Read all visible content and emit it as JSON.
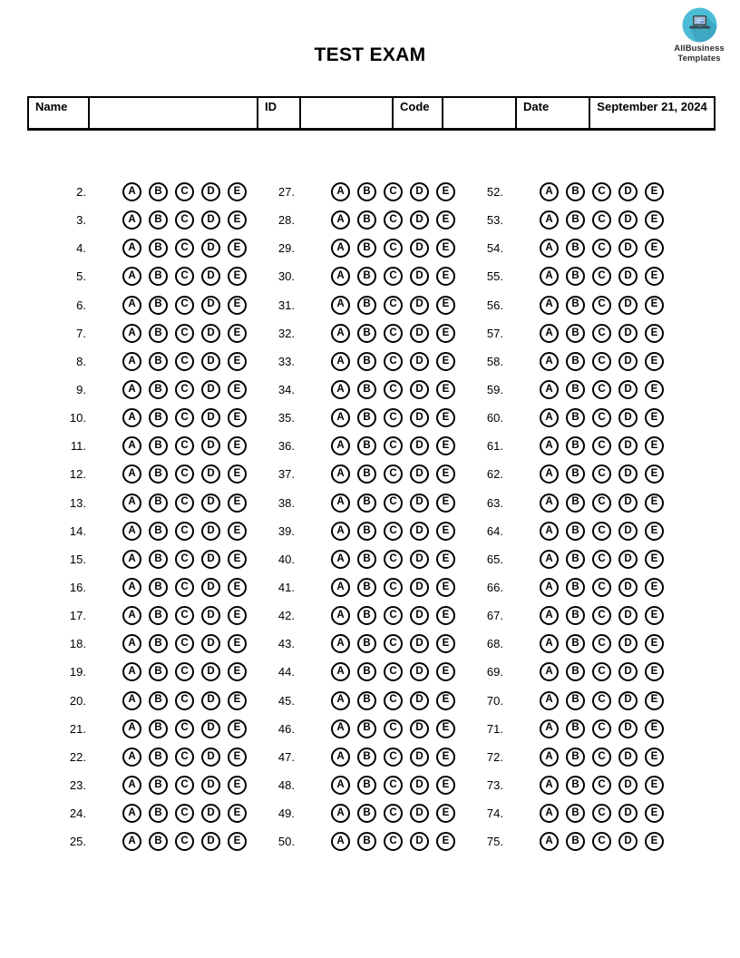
{
  "logo": {
    "line1": "AllBusiness",
    "line2": "Templates",
    "circle_color": "#4cbcd6",
    "shadow_color": "#3ea7c2",
    "laptop_body_color": "#37474f",
    "screen_bg_color": "#eceff1",
    "screen_content_color": "#5c8fd6"
  },
  "title": "TEST EXAM",
  "header_table": {
    "name_label": "Name",
    "name_value": "",
    "id_label": "ID",
    "id_value": "",
    "code_label": "Code",
    "code_value": "",
    "date_label": "Date",
    "date_value": "September 21, 2024"
  },
  "answer_sheet": {
    "choices": [
      "A",
      "B",
      "C",
      "D",
      "E"
    ],
    "number_suffix": ".",
    "columns": [
      {
        "questions": [
          2,
          3,
          4,
          5,
          6,
          7,
          8,
          9,
          10,
          11,
          12,
          13,
          14,
          15,
          16,
          17,
          18,
          19,
          20,
          21,
          22,
          23,
          24,
          25
        ]
      },
      {
        "questions": [
          27,
          28,
          29,
          30,
          31,
          32,
          33,
          34,
          35,
          36,
          37,
          38,
          39,
          40,
          41,
          42,
          43,
          44,
          45,
          46,
          47,
          48,
          49,
          50
        ]
      },
      {
        "questions": [
          52,
          53,
          54,
          55,
          56,
          57,
          58,
          59,
          60,
          61,
          62,
          63,
          64,
          65,
          66,
          67,
          68,
          69,
          70,
          71,
          72,
          73,
          74,
          75
        ]
      }
    ]
  }
}
